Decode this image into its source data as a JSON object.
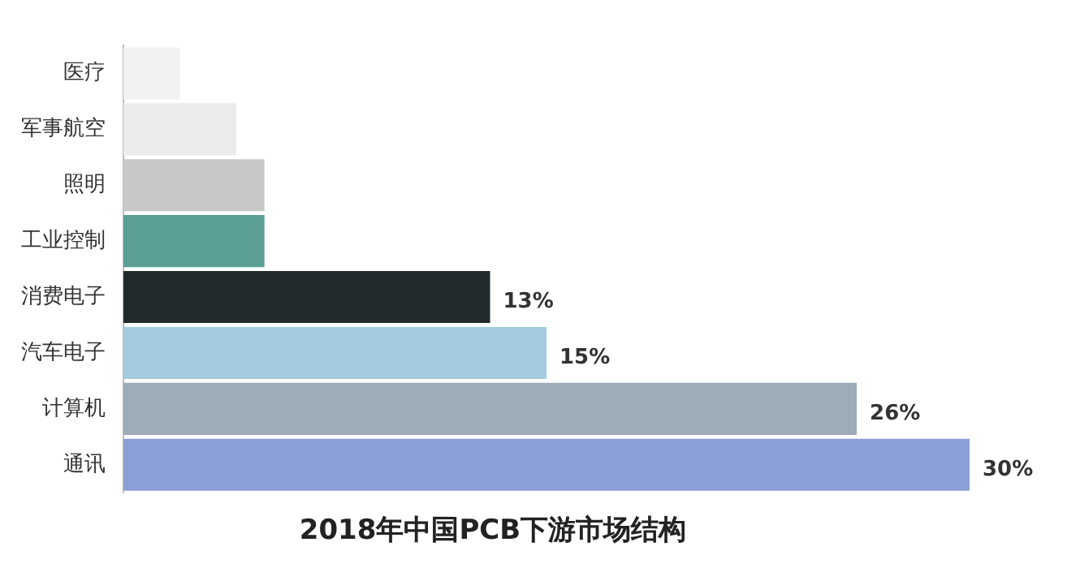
{
  "chart_data": {
    "type": "bar",
    "orientation": "horizontal",
    "title": "2018年中国PCB下游市场结构",
    "categories": [
      "医疗",
      "军事航空",
      "照明",
      "工业控制",
      "消费电子",
      "汽车电子",
      "计算机",
      "通讯"
    ],
    "values": [
      2,
      4,
      5,
      5,
      13,
      15,
      26,
      30
    ],
    "colors": [
      "#f2f2f2",
      "#ebebeb",
      "#c8c8c8",
      "#5a9e94",
      "#222a2c",
      "#a3cbdf",
      "#9eabb8",
      "#8b9fd6"
    ],
    "value_labels": [
      null,
      null,
      null,
      null,
      "13%",
      "15%",
      "26%",
      "30%"
    ],
    "legend": false,
    "tick_labels": "y"
  }
}
